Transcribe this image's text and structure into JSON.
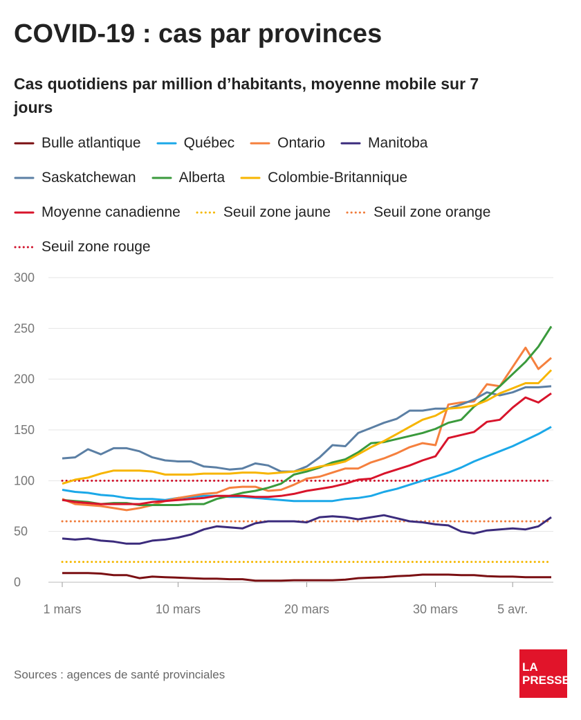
{
  "chart_data": {
    "type": "line",
    "title": "COVID-19 : cas par provinces",
    "subtitle": "Cas quotidiens par million d’habitants, moyenne mobile sur 7 jours",
    "source": "Sources : agences de santé provinciales",
    "categories": [
      "1 mars",
      null,
      null,
      null,
      null,
      null,
      null,
      null,
      null,
      "10 mars",
      null,
      null,
      null,
      null,
      null,
      null,
      null,
      null,
      null,
      "20 mars",
      null,
      null,
      null,
      null,
      null,
      null,
      null,
      null,
      null,
      "30 mars",
      null,
      null,
      null,
      null,
      null,
      "5 avr.",
      null,
      null,
      null
    ],
    "ylim": [
      0,
      300
    ],
    "yticks": [
      0,
      50,
      100,
      150,
      200,
      250,
      300
    ],
    "grid": true,
    "series": [
      {
        "name": "Bulle atlantique",
        "color": "#7a0f12",
        "values": [
          9,
          9,
          9,
          8.5,
          7,
          7,
          4,
          5.5,
          5,
          4.5,
          4,
          3.5,
          3.5,
          3,
          3,
          1.5,
          1.5,
          1.5,
          2,
          2,
          2,
          2,
          2.5,
          4,
          4.5,
          5,
          6,
          6.5,
          7.5,
          7.5,
          7.5,
          7,
          7,
          6,
          5.5,
          5.5,
          5,
          5,
          5
        ]
      },
      {
        "name": "Québec",
        "color": "#1ba8e8",
        "values": [
          91,
          89,
          88,
          86,
          85,
          83,
          82,
          82,
          81,
          83,
          84,
          85,
          85,
          84,
          84,
          83,
          82,
          81,
          80,
          80,
          80,
          80,
          82,
          83,
          85,
          89,
          92,
          96,
          100,
          104,
          108,
          113,
          119,
          124,
          129,
          134,
          140,
          146,
          153
        ]
      },
      {
        "name": "Ontario",
        "color": "#f5803e",
        "values": [
          82,
          77,
          76,
          75,
          73,
          71,
          73,
          76,
          80,
          83,
          85,
          87,
          88,
          93,
          94,
          94,
          90,
          91,
          96,
          102,
          104,
          108,
          112,
          112,
          118,
          122,
          127,
          133,
          137,
          135,
          175,
          177,
          178,
          195,
          193,
          212,
          231,
          210,
          221
        ]
      },
      {
        "name": "Manitoba",
        "color": "#3b2b7c",
        "values": [
          43,
          42,
          43,
          41,
          40,
          38,
          38,
          41,
          42,
          44,
          47,
          52,
          55,
          54,
          53,
          58,
          60,
          60,
          60,
          59,
          64,
          65,
          64,
          62,
          64,
          66,
          63,
          60,
          59,
          57,
          56,
          50,
          48,
          51,
          52,
          53,
          52,
          55,
          64
        ]
      },
      {
        "name": "Saskatchewan",
        "color": "#5b7fa4",
        "values": [
          122,
          123,
          131,
          126,
          132,
          132,
          129,
          123,
          120,
          119,
          119,
          114,
          113,
          111,
          112,
          117,
          115,
          109,
          109,
          114,
          123,
          135,
          134,
          147,
          152,
          157,
          161,
          169,
          169,
          171,
          171,
          175,
          180,
          187,
          184,
          187,
          192,
          192,
          193
        ]
      },
      {
        "name": "Alberta",
        "color": "#3a9a3c",
        "values": [
          81,
          80,
          79,
          77,
          78,
          78,
          76,
          76,
          76,
          76,
          77,
          77,
          82,
          85,
          88,
          90,
          93,
          97,
          106,
          109,
          113,
          118,
          121,
          128,
          137,
          138,
          141,
          144,
          147,
          151,
          157,
          160,
          173,
          182,
          193,
          205,
          217,
          232,
          252
        ]
      },
      {
        "name": "Colombie-Britannique",
        "color": "#f7b500",
        "values": [
          97,
          101,
          103,
          107,
          110,
          110,
          110,
          109,
          106,
          106,
          106,
          107,
          107,
          107,
          108,
          108,
          107,
          108,
          109,
          111,
          114,
          116,
          119,
          126,
          133,
          139,
          146,
          153,
          160,
          164,
          171,
          172,
          174,
          179,
          186,
          191,
          196,
          196,
          209
        ]
      },
      {
        "name": "Moyenne canadienne",
        "color": "#d8142b",
        "values": [
          81,
          79,
          78,
          77,
          77,
          77,
          77,
          79,
          80,
          81,
          82,
          83,
          85,
          85,
          85,
          84,
          84,
          85,
          87,
          90,
          92,
          94,
          97,
          101,
          102,
          107,
          111,
          115,
          120,
          124,
          142,
          145,
          148,
          158,
          160,
          172,
          182,
          177,
          186
        ]
      },
      {
        "name": "Seuil zone jaune",
        "color": "#f5b800",
        "style": "dotted",
        "value": 20
      },
      {
        "name": "Seuil zone orange",
        "color": "#f07b3a",
        "style": "dotted",
        "value": 60
      },
      {
        "name": "Seuil zone rouge",
        "color": "#d0102a",
        "style": "dotted",
        "value": 100
      }
    ]
  }
}
